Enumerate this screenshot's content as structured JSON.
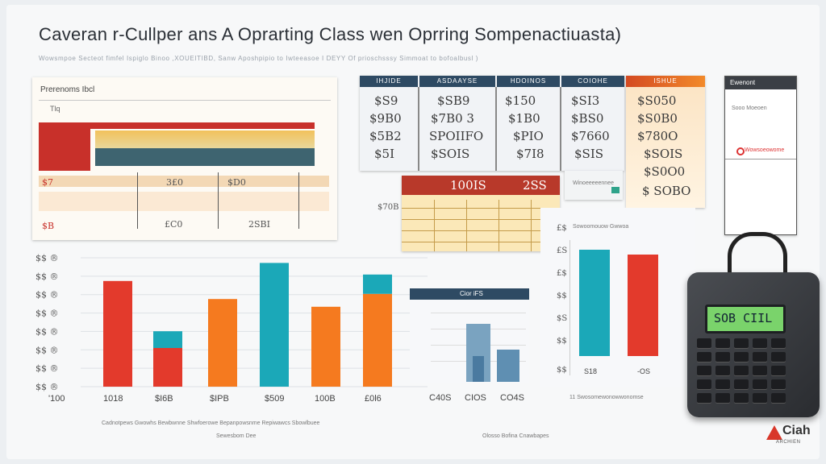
{
  "page": {
    "title": "Caveran r-Cullper ans A Oprarting Class wen Oprring Sompenactiuasta)",
    "subtitle": "Wowsmpoe Secteot fimfel Ispiglo Binoo ,XOUEITIBD, Sanw Aposhpipio to Iwteeasoe I DEYY Of prioschsssy Simmoat to bofoalbusl )"
  },
  "left_panel": {
    "header": "Prerenoms Ibcl",
    "tag": "Tlq",
    "values": [
      "3£0",
      "$D0",
      "£C0",
      "2SBI"
    ],
    "side_labels": [
      "$7",
      "$B"
    ]
  },
  "price_table": {
    "headers": [
      "IHJIDE",
      "ASDAAYSE",
      "HDOINOS",
      "COIOHE",
      "ISHUE"
    ],
    "columns": [
      [
        "$S9",
        "$9B0",
        "$5B2",
        "$5I"
      ],
      [
        "$SB9",
        "$7B0 3",
        "SPOIIFO",
        "$SOIS"
      ],
      [
        "$150",
        "$1B0",
        "$PIO",
        "$7I8"
      ],
      [
        "$SI3",
        "$BS0",
        "$7660",
        "$SIS"
      ],
      [
        "$S050",
        "$S0B0",
        "$780O",
        "$SOIS",
        "$S0O0",
        "$ SOBO"
      ]
    ]
  },
  "right_panel": {
    "header": "Ewenont",
    "label": "Sooo Moeoen",
    "line_label": "Wowsoeowome"
  },
  "mid_card": {
    "title_left": "100IS",
    "title_right": "2SS",
    "label": "$70B"
  },
  "small_card": {
    "title": "Winoeeeeennee",
    "label": "Cior iFS"
  },
  "bar_chart": {
    "y_ticks": [
      "$$ ®",
      "$$ ®",
      "$$ ®",
      "$$ ®",
      "$$ ®",
      "$$ ®",
      "$$ ®",
      "$$ ®"
    ],
    "x_labels": [
      "'100",
      "1018",
      "$I6B",
      "$IPB",
      "$509",
      "100B",
      "£0l6"
    ],
    "caption": "Cadnotpews Gwowhs Bewbwnne   Shwfoerowe Bepanpowsnme   Repiwawcs Sbowlbuee",
    "caption2": "Sewesbom Dee"
  },
  "mini_chart": {
    "x_labels": [
      "C40S",
      "CIOS",
      "CO4S"
    ]
  },
  "side_chart": {
    "title": "Sowoomouow Gwwoa",
    "ticks": [
      "£$",
      "£S",
      "£$",
      "$$",
      "$S",
      "$$",
      "$$"
    ],
    "x_labels": [
      "S18",
      "-OS"
    ],
    "caption": "11 Swosomewonowwonomse",
    "caption2": "Olosso Bofina Cnawbapes"
  },
  "calculator": {
    "display": "SOB CIIL"
  },
  "logo": {
    "text": "Ciah",
    "sub": "ARCHIEN"
  },
  "chart_data": {
    "type": "bar",
    "categories": [
      "1018",
      "$I6B",
      "$IPB",
      "$509",
      "100B",
      "£0l6"
    ],
    "values": [
      82,
      30,
      68,
      96,
      62,
      72
    ],
    "overlays": [
      0,
      13,
      0,
      0,
      0,
      15
    ],
    "colors": [
      "#e33a2c",
      "#e33a2c",
      "#f57a1f",
      "#1ba8b8",
      "#f57a1f",
      "#f57a1f"
    ],
    "ylim": [
      0,
      100
    ],
    "grid": true
  }
}
